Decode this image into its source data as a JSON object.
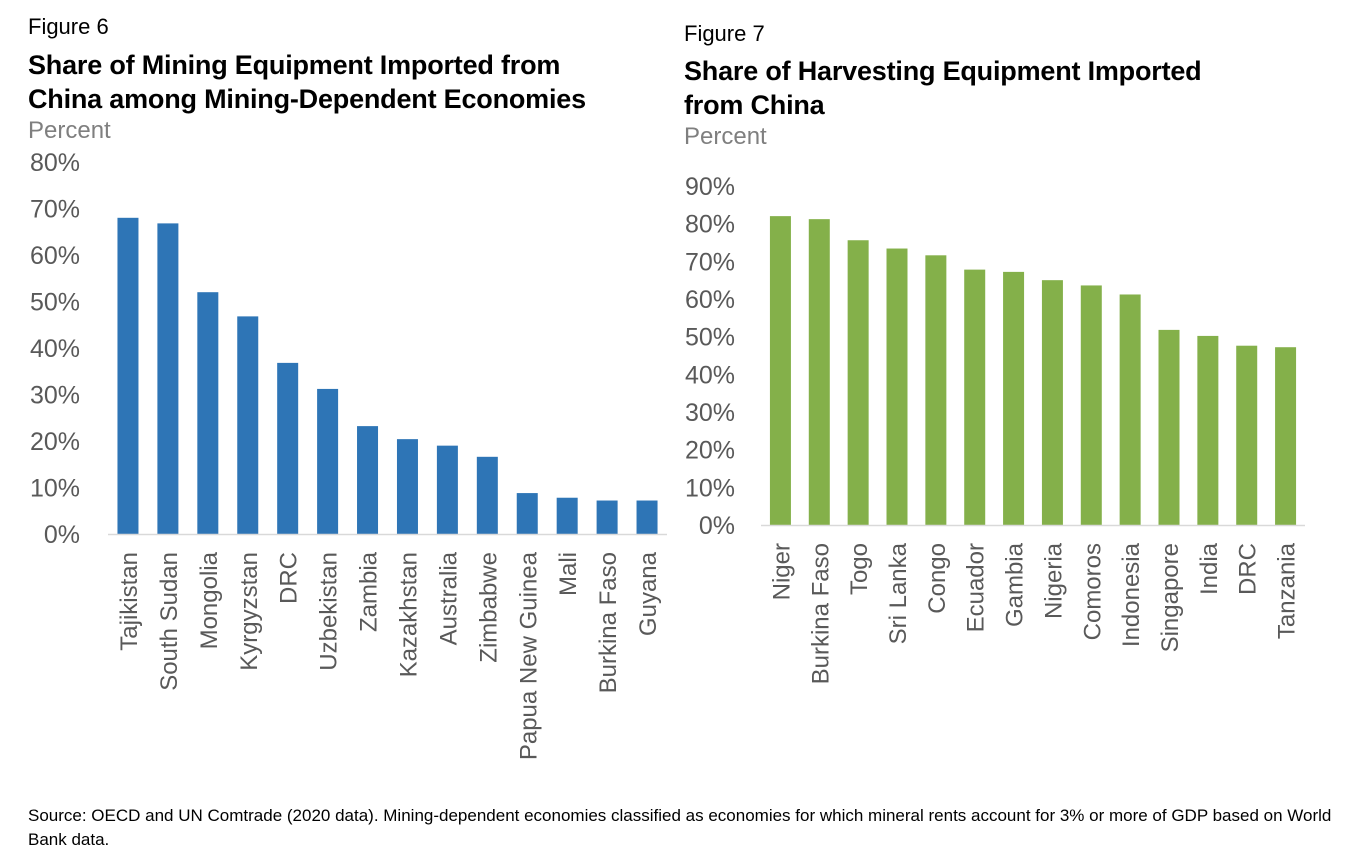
{
  "figures": [
    {
      "label": "Figure 6",
      "title_line1": "Share of Mining Equipment Imported from",
      "title_line2": "China among Mining-Dependent Economies",
      "unit": "Percent"
    },
    {
      "label": "Figure 7",
      "title_line1": "Share of Harvesting Equipment Imported",
      "title_line2": "from China",
      "unit": "Percent"
    }
  ],
  "chart_data": [
    {
      "type": "bar",
      "title": "Share of Mining Equipment Imported from China among Mining-Dependent Economies",
      "ylabel": "Percent",
      "ylim": [
        0,
        80
      ],
      "yticks": [
        0,
        10,
        20,
        30,
        40,
        50,
        60,
        70,
        80
      ],
      "ytick_labels": [
        "0%",
        "10%",
        "20%",
        "30%",
        "40%",
        "50%",
        "60%",
        "70%",
        "80%"
      ],
      "color": "#2e75b6",
      "categories": [
        "Tajikistan",
        "South Sudan",
        "Mongolia",
        "Kyrgyzstan",
        "DRC",
        "Uzbekistan",
        "Zambia",
        "Kazakhstan",
        "Australia",
        "Zimbabwe",
        "Papua New Guinea",
        "Mali",
        "Burkina Faso",
        "Guyana"
      ],
      "values": [
        68,
        66.8,
        52,
        46.8,
        36.8,
        31.2,
        23.2,
        20.4,
        19,
        16.6,
        8.8,
        7.8,
        7.2,
        7.2
      ]
    },
    {
      "type": "bar",
      "title": "Share of Harvesting Equipment Imported from China",
      "ylabel": "Percent",
      "ylim": [
        0,
        90
      ],
      "yticks": [
        0,
        10,
        20,
        30,
        40,
        50,
        60,
        70,
        80,
        90
      ],
      "ytick_labels": [
        "0%",
        "10%",
        "20%",
        "30%",
        "40%",
        "50%",
        "60%",
        "70%",
        "80%",
        "90%"
      ],
      "color": "#84b04a",
      "categories": [
        "Niger",
        "Burkina Faso",
        "Togo",
        "Sri Lanka",
        "Congo",
        "Ecuador",
        "Gambia",
        "Nigeria",
        "Comoros",
        "Indonesia",
        "Singapore",
        "India",
        "DRC",
        "Tanzania"
      ],
      "values": [
        82,
        81.2,
        75.6,
        73.4,
        71.6,
        67.8,
        67.2,
        65,
        63.6,
        61.2,
        51.8,
        50.2,
        47.6,
        47.2
      ]
    }
  ],
  "source": "Source: OECD and UN Comtrade (2020 data). Mining-dependent economies classified as economies for which mineral rents account for 3% or more of GDP based on World Bank data."
}
